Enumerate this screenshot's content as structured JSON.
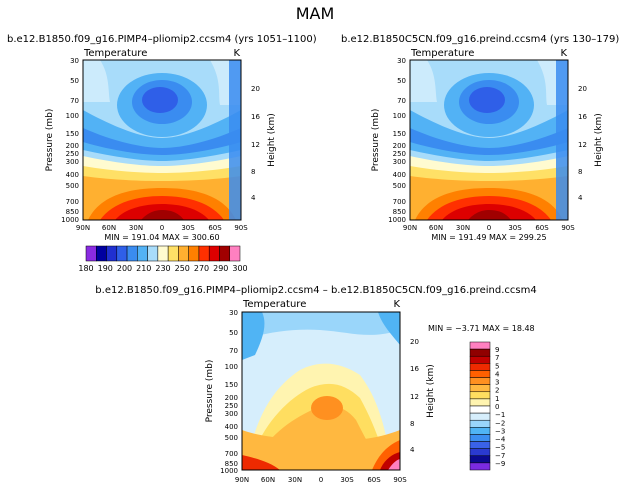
{
  "colors": {
    "abs": [
      "#8a2be2",
      "#0000a0",
      "#2030d0",
      "#2f5fe8",
      "#3a8cf0",
      "#52b2f5",
      "#a8dcfa",
      "#fffbd0",
      "#ffe066",
      "#ffb030",
      "#ff8000",
      "#ff3000",
      "#dd0000",
      "#a00000",
      "#ff80c0"
    ],
    "diff": [
      "#7a2be2",
      "#0a0a90",
      "#2a3ad0",
      "#3a62e8",
      "#3c8ef0",
      "#50b4f4",
      "#9ad6fa",
      "#d6eefc",
      "#ffffff",
      "#fff4b0",
      "#ffde60",
      "#ffb840",
      "#ff9020",
      "#ff6000",
      "#ee2a00",
      "#c00000",
      "#900000",
      "#ff80c0"
    ]
  },
  "chart_data": {
    "figure_title": "MAM",
    "panels": [
      {
        "id": "top-left",
        "type": "contour",
        "title": "b.e12.B1850.f09_g16.PIMP4–pliomip2.ccsm4  (yrs  1051–1100)",
        "variable_label": "Temperature",
        "units": "K",
        "ylabel": "Pressure  (mb)",
        "ylabel_right": "Height  (km)",
        "x_ticks": [
          "90N",
          "60N",
          "30N",
          "0",
          "30S",
          "60S",
          "90S"
        ],
        "y_ticks": [
          "30",
          "50",
          "70",
          "100",
          "150",
          "200",
          "250",
          "300",
          "400",
          "500",
          "700",
          "850",
          "1000"
        ],
        "height_ticks": [
          "20",
          "16",
          "12",
          "8",
          "4"
        ],
        "stats": "MIN = 191.04    MAX = 300.60",
        "min": 191.04,
        "max": 300.6
      },
      {
        "id": "top-right",
        "type": "contour",
        "title": "b.e12.B1850C5CN.f09_g16.preind.ccsm4  (yrs  130–179)",
        "variable_label": "Temperature",
        "units": "K",
        "ylabel": "Pressure  (mb)",
        "ylabel_right": "Height  (km)",
        "x_ticks": [
          "90N",
          "60N",
          "30N",
          "0",
          "30S",
          "60S",
          "90S"
        ],
        "y_ticks": [
          "30",
          "50",
          "70",
          "100",
          "150",
          "200",
          "250",
          "300",
          "400",
          "500",
          "700",
          "850",
          "1000"
        ],
        "height_ticks": [
          "20",
          "16",
          "12",
          "8",
          "4"
        ],
        "stats": "MIN = 191.49    MAX = 299.25",
        "min": 191.49,
        "max": 299.25
      },
      {
        "id": "bottom",
        "type": "contour",
        "title": "b.e12.B1850.f09_g16.PIMP4–pliomip2.ccsm4  –  b.e12.B1850C5CN.f09_g16.preind.ccsm4",
        "variable_label": "Temperature",
        "units": "K",
        "ylabel": "Pressure  (mb)",
        "ylabel_right": "Height  (km)",
        "x_ticks": [
          "90N",
          "60N",
          "30N",
          "0",
          "30S",
          "60S",
          "90S"
        ],
        "y_ticks": [
          "30",
          "50",
          "70",
          "100",
          "150",
          "200",
          "250",
          "300",
          "400",
          "500",
          "700",
          "850",
          "1000"
        ],
        "height_ticks": [
          "20",
          "16",
          "12",
          "8",
          "4"
        ],
        "stats": "MIN =   −3.71    MAX =   18.48",
        "min": -3.71,
        "max": 18.48
      }
    ],
    "colorbar_absolute": {
      "orientation": "horizontal",
      "labels": [
        "180",
        "190",
        "200",
        "210",
        "230",
        "250",
        "270",
        "290",
        "300"
      ]
    },
    "colorbar_difference": {
      "orientation": "vertical",
      "labels": [
        "9",
        "7",
        "5",
        "4",
        "3",
        "2",
        "1",
        "0",
        "−1",
        "−2",
        "−3",
        "−4",
        "−5",
        "−7",
        "−9"
      ]
    }
  }
}
